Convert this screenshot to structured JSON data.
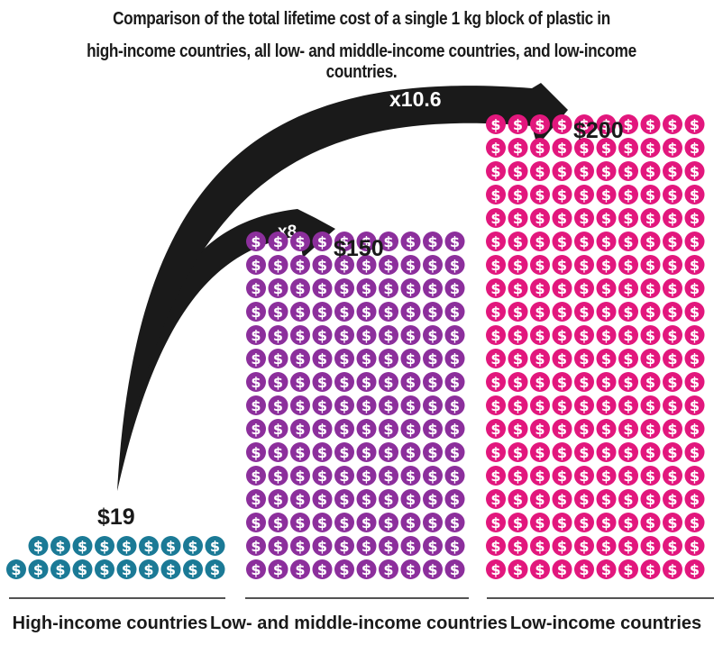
{
  "title": {
    "line1": "Comparison of the total lifetime cost of a single 1 kg block of plastic in",
    "line2": "high-income countries, all low- and middle-income countries, and low-income countries."
  },
  "icon_name": "dollar-coin-icon",
  "icon_glyph": "$",
  "chart_data": {
    "type": "bar",
    "title": "Comparison of the total lifetime cost of a single 1 kg block of plastic in high-income countries, all low- and middle-income countries, and low-income countries.",
    "categories": [
      "High-income countries",
      "Low- and middle-income countries",
      "Low-income countries"
    ],
    "values": [
      19,
      150,
      200
    ],
    "value_labels": [
      "$19",
      "$150",
      "$200"
    ],
    "units_per_icon": 1,
    "colors": [
      "#1b7a96",
      "#8c2f9c",
      "#e2177d"
    ],
    "annotations": [
      {
        "label": "x8",
        "from": "High-income countries",
        "to": "Low- and middle-income countries"
      },
      {
        "label": "x10.6",
        "from": "High-income countries",
        "to": "Low-income countries"
      }
    ],
    "arrow_color": "#1a1a1a"
  }
}
